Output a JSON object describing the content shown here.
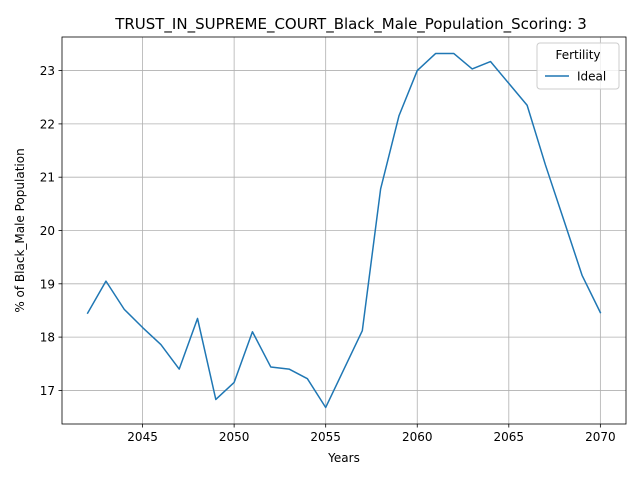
{
  "chart_data": {
    "type": "line",
    "title": "TRUST_IN_SUPREME_COURT_Black_Male_Population_Scoring: 3",
    "xlabel": "Years",
    "ylabel": "% of Black_Male Population",
    "xlim": [
      2040.6,
      2071.4
    ],
    "ylim": [
      16.37,
      23.63
    ],
    "xticks": [
      2045,
      2050,
      2055,
      2060,
      2065,
      2070
    ],
    "yticks": [
      17,
      18,
      19,
      20,
      21,
      22,
      23
    ],
    "grid": true,
    "legend": {
      "title": "Fertility",
      "placement": "top-right"
    },
    "x": [
      2042,
      2043,
      2044,
      2045,
      2046,
      2047,
      2048,
      2049,
      2050,
      2051,
      2052,
      2053,
      2054,
      2055,
      2056,
      2057,
      2058,
      2059,
      2060,
      2061,
      2062,
      2063,
      2064,
      2065,
      2066,
      2067,
      2068,
      2069,
      2070
    ],
    "series": [
      {
        "name": "Ideal",
        "color": "#1f77b4",
        "values": [
          18.45,
          19.05,
          18.52,
          18.18,
          17.86,
          17.4,
          18.35,
          16.83,
          17.15,
          18.1,
          17.44,
          17.4,
          17.22,
          16.68,
          17.4,
          18.12,
          20.78,
          22.15,
          23.0,
          23.32,
          23.32,
          23.03,
          23.17,
          22.76,
          22.35,
          21.23,
          20.2,
          19.16,
          18.46
        ]
      }
    ]
  }
}
